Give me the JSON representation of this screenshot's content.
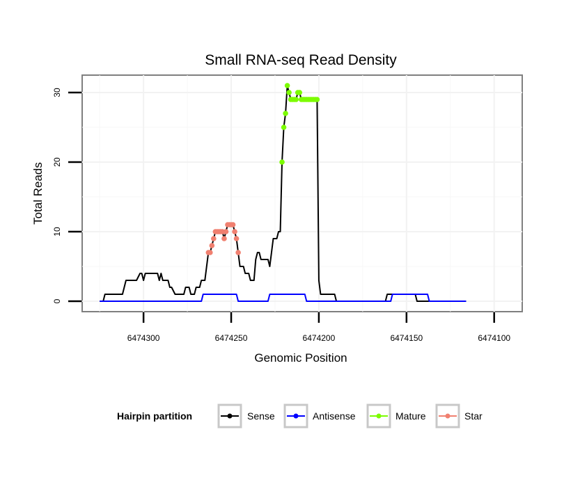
{
  "chart_data": {
    "type": "line",
    "title": "Small RNA-seq Read Density",
    "xlabel": "Genomic Position",
    "ylabel": "Total Reads",
    "xlim": [
      6474335,
      6474084
    ],
    "ylim": [
      -1.5,
      32.5
    ],
    "x_reversed": true,
    "grid": true,
    "x_ticks": [
      6474300,
      6474250,
      6474200,
      6474150,
      6474100
    ],
    "x_tick_labels": [
      "6474300",
      "6474250",
      "6474200",
      "6474150",
      "6474100"
    ],
    "y_ticks": [
      0,
      10,
      20,
      30
    ],
    "y_tick_labels": [
      "0",
      "10",
      "20",
      "30"
    ],
    "legend": {
      "title": "Hairpin partition",
      "position": "bottom",
      "entries": [
        {
          "name": "Sense",
          "color": "#000000"
        },
        {
          "name": "Antisense",
          "color": "#0000ff"
        },
        {
          "name": "Mature",
          "color": "#7cfc00"
        },
        {
          "name": "Star",
          "color": "#f08070"
        }
      ]
    },
    "series": [
      {
        "name": "Sense",
        "color": "#000000",
        "style": "line",
        "points": [
          [
            6474325,
            0
          ],
          [
            6474323,
            0
          ],
          [
            6474322,
            1
          ],
          [
            6474319,
            1
          ],
          [
            6474312,
            1
          ],
          [
            6474310,
            3
          ],
          [
            6474304,
            3
          ],
          [
            6474302,
            4
          ],
          [
            6474301,
            4
          ],
          [
            6474300,
            3
          ],
          [
            6474299,
            4
          ],
          [
            6474292,
            4
          ],
          [
            6474291,
            3
          ],
          [
            6474290,
            4
          ],
          [
            6474289,
            3
          ],
          [
            6474286,
            3
          ],
          [
            6474285,
            2
          ],
          [
            6474284,
            2
          ],
          [
            6474282,
            1
          ],
          [
            6474277,
            1
          ],
          [
            6474276,
            2
          ],
          [
            6474274,
            2
          ],
          [
            6474273,
            1
          ],
          [
            6474271,
            1
          ],
          [
            6474270,
            2
          ],
          [
            6474268,
            2
          ],
          [
            6474267,
            3
          ],
          [
            6474265,
            3
          ],
          [
            6474264,
            5
          ],
          [
            6474263,
            7
          ],
          [
            6474262,
            7
          ],
          [
            6474261,
            8
          ],
          [
            6474260,
            9
          ],
          [
            6474259,
            10
          ],
          [
            6474255,
            10
          ],
          [
            6474254,
            9
          ],
          [
            6474253,
            10
          ],
          [
            6474252,
            11
          ],
          [
            6474249,
            11
          ],
          [
            6474248,
            10
          ],
          [
            6474247,
            9
          ],
          [
            6474246,
            7
          ],
          [
            6474245,
            5
          ],
          [
            6474243,
            5
          ],
          [
            6474242,
            4
          ],
          [
            6474240,
            4
          ],
          [
            6474239,
            3
          ],
          [
            6474237,
            3
          ],
          [
            6474236,
            6
          ],
          [
            6474235,
            7
          ],
          [
            6474234,
            7
          ],
          [
            6474233,
            6
          ],
          [
            6474229,
            6
          ],
          [
            6474228,
            5
          ],
          [
            6474227,
            7
          ],
          [
            6474226,
            9
          ],
          [
            6474224,
            9
          ],
          [
            6474223,
            10
          ],
          [
            6474222,
            10
          ],
          [
            6474221,
            20
          ],
          [
            6474220,
            25
          ],
          [
            6474219,
            27
          ],
          [
            6474218,
            31
          ],
          [
            6474217,
            30
          ],
          [
            6474216,
            29
          ],
          [
            6474213,
            29
          ],
          [
            6474212,
            30
          ],
          [
            6474211,
            30
          ],
          [
            6474210,
            29
          ],
          [
            6474201,
            29
          ],
          [
            6474200,
            3
          ],
          [
            6474199,
            1
          ],
          [
            6474191,
            1
          ],
          [
            6474190,
            0
          ],
          [
            6474162,
            0
          ],
          [
            6474161,
            1
          ],
          [
            6474145,
            1
          ],
          [
            6474144,
            0
          ],
          [
            6474116,
            0
          ]
        ]
      },
      {
        "name": "Antisense",
        "color": "#0000ff",
        "style": "line",
        "points": [
          [
            6474325,
            0
          ],
          [
            6474267,
            0
          ],
          [
            6474266,
            1
          ],
          [
            6474247,
            1
          ],
          [
            6474246,
            0
          ],
          [
            6474229,
            0
          ],
          [
            6474228,
            1
          ],
          [
            6474208,
            1
          ],
          [
            6474207,
            0
          ],
          [
            6474159,
            0
          ],
          [
            6474158,
            1
          ],
          [
            6474138,
            1
          ],
          [
            6474137,
            0
          ],
          [
            6474116,
            0
          ]
        ]
      },
      {
        "name": "Mature",
        "color": "#7cfc00",
        "style": "points",
        "points": [
          [
            6474221,
            20
          ],
          [
            6474220,
            25
          ],
          [
            6474219,
            27
          ],
          [
            6474218,
            31
          ],
          [
            6474217,
            30
          ],
          [
            6474216,
            29
          ],
          [
            6474215,
            29
          ],
          [
            6474214,
            29
          ],
          [
            6474213,
            29
          ],
          [
            6474212,
            30
          ],
          [
            6474211,
            30
          ],
          [
            6474210,
            29
          ],
          [
            6474209,
            29
          ],
          [
            6474208,
            29
          ],
          [
            6474207,
            29
          ],
          [
            6474206,
            29
          ],
          [
            6474205,
            29
          ],
          [
            6474204,
            29
          ],
          [
            6474203,
            29
          ],
          [
            6474202,
            29
          ],
          [
            6474201,
            29
          ]
        ]
      },
      {
        "name": "Star",
        "color": "#f08070",
        "style": "points",
        "points": [
          [
            6474263,
            7
          ],
          [
            6474262,
            7
          ],
          [
            6474261,
            8
          ],
          [
            6474260,
            9
          ],
          [
            6474259,
            10
          ],
          [
            6474258,
            10
          ],
          [
            6474257,
            10
          ],
          [
            6474256,
            10
          ],
          [
            6474255,
            10
          ],
          [
            6474254,
            9
          ],
          [
            6474253,
            10
          ],
          [
            6474252,
            11
          ],
          [
            6474251,
            11
          ],
          [
            6474250,
            11
          ],
          [
            6474249,
            11
          ],
          [
            6474248,
            10
          ],
          [
            6474247,
            9
          ],
          [
            6474246,
            7
          ]
        ]
      }
    ]
  }
}
